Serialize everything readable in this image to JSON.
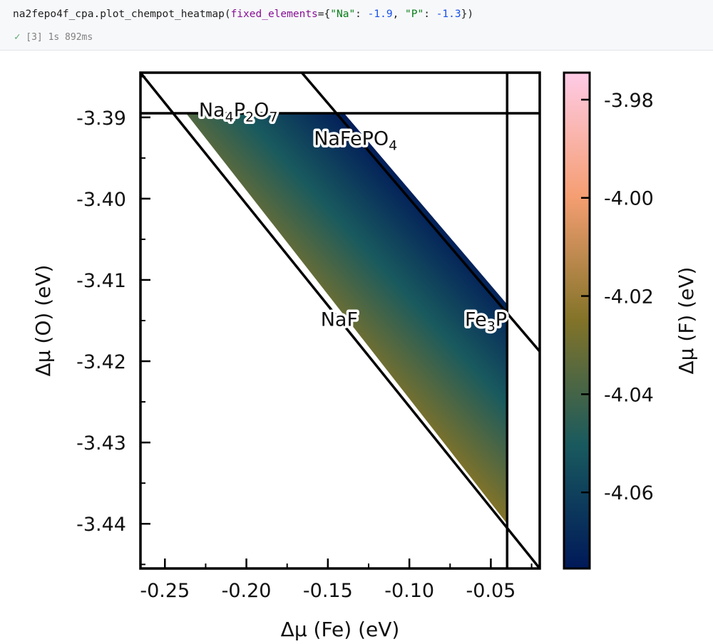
{
  "cell": {
    "code": {
      "object": "na2fepo4f_cpa",
      "method": ".plot_chempot_heatmap(",
      "kwarg": "fixed_elements",
      "eq_brace": "={",
      "key1": "\"Na\"",
      "sep1": ": ",
      "val1": "-1.9",
      "comma": ", ",
      "key2": "\"P\"",
      "sep2": ": ",
      "val2": "-1.3",
      "close": "})"
    },
    "status": {
      "icon": "checkmark-icon",
      "exec_count": "[3]",
      "duration": "1s 892ms"
    }
  },
  "chart_data": {
    "type": "heatmap",
    "x": {
      "label": "Δμ (Fe) (eV)",
      "lim": [
        -0.265,
        -0.02
      ],
      "ticks": [
        -0.25,
        -0.2,
        -0.15,
        -0.1,
        -0.05
      ],
      "tick_labels": [
        "-0.25",
        "-0.20",
        "-0.15",
        "-0.10",
        "-0.05"
      ],
      "minor_step": 0.025
    },
    "y": {
      "label": "Δμ (O) (eV)",
      "lim": [
        -3.4455,
        -3.3845
      ],
      "ticks": [
        -3.39,
        -3.4,
        -3.41,
        -3.42,
        -3.43,
        -3.44
      ],
      "tick_labels": [
        "-3.39",
        "-3.40",
        "-3.41",
        "-3.42",
        "-3.43",
        "-3.44"
      ],
      "minor_step": 0.005
    },
    "colorbar": {
      "label": "Δμ (F) (eV)",
      "lim": [
        -4.0755,
        -3.9745
      ],
      "ticks": [
        -3.98,
        -4.0,
        -4.02,
        -4.04,
        -4.06
      ],
      "tick_labels": [
        "-3.98",
        "-4.00",
        "-4.02",
        "-4.04",
        "-4.06"
      ],
      "colormap": "batlow_r",
      "colors": [
        "#fecbe6",
        "#f59e72",
        "#827328",
        "#195a5e",
        "#001959"
      ]
    },
    "stable_region": [
      [
        -0.237,
        -3.3895
      ],
      [
        -0.14,
        -3.3895
      ],
      [
        -0.04,
        -3.413
      ],
      [
        -0.04,
        -3.44
      ]
    ],
    "boundary_lines": [
      {
        "name": "Na4P2O7",
        "points": [
          [
            -0.265,
            -3.3895
          ],
          [
            -0.02,
            -3.3895
          ]
        ]
      },
      {
        "name": "NaFePO4",
        "points": [
          [
            -0.166,
            -3.3845
          ],
          [
            -0.02,
            -3.4188
          ]
        ]
      },
      {
        "name": "NaF",
        "points": [
          [
            -0.265,
            -3.3845
          ],
          [
            -0.02,
            -3.4455
          ]
        ]
      },
      {
        "name": "Fe3P",
        "points": [
          [
            -0.04,
            -3.3845
          ],
          [
            -0.04,
            -3.4455
          ]
        ]
      }
    ],
    "labels": [
      {
        "text": "Na4P2O7",
        "x": -0.205,
        "y": -3.389
      },
      {
        "text": "NaFePO4",
        "x": -0.133,
        "y": -3.3925
      },
      {
        "text": "NaF",
        "x": -0.143,
        "y": -3.4148
      },
      {
        "text": "Fe3P",
        "x": -0.053,
        "y": -3.4148
      }
    ]
  }
}
